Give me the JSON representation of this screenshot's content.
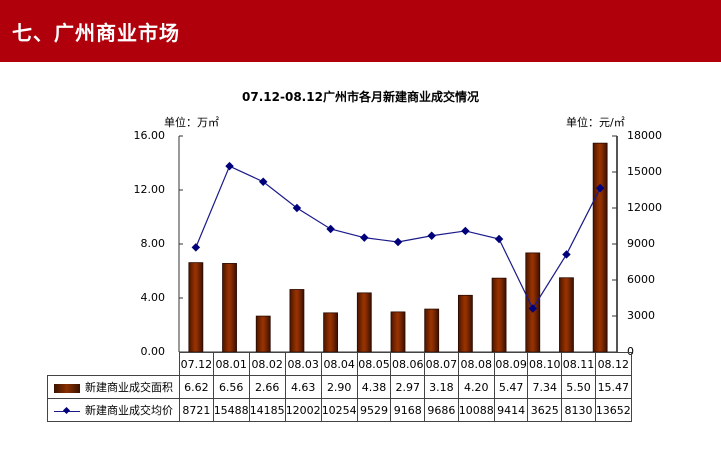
{
  "header": {
    "title": "七、广州商业市场",
    "bg_color": "#b0000c"
  },
  "chart": {
    "title": "07.12-08.12广州市各月新建商业成交情况",
    "unit_left": "单位：万㎡",
    "unit_right": "单位：元/㎡",
    "left_ticks": [
      "16.00",
      "12.00",
      "8.00",
      "4.00",
      "0.00"
    ],
    "right_ticks": [
      "18000",
      "15000",
      "12000",
      "9000",
      "6000",
      "3000",
      "0"
    ],
    "legend": {
      "area_label": "新建商业成交面积",
      "price_label": "新建商业成交均价"
    },
    "categories": [
      "07.12",
      "08.01",
      "08.02",
      "08.03",
      "08.04",
      "08.05",
      "08.06",
      "08.07",
      "08.08",
      "08.09",
      "08.10",
      "08.11",
      "08.12"
    ],
    "area_values": [
      "6.62",
      "6.56",
      "2.66",
      "4.63",
      "2.90",
      "4.38",
      "2.97",
      "3.18",
      "4.20",
      "5.47",
      "7.34",
      "5.50",
      "15.47"
    ],
    "price_values": [
      "8721",
      "15488",
      "14185",
      "12002",
      "10254",
      "9529",
      "9168",
      "9686",
      "10088",
      "9414",
      "3625",
      "8130",
      "13652"
    ]
  },
  "chart_data": {
    "type": "bar",
    "title": "07.12-08.12广州市各月新建商业成交情况",
    "categories": [
      "07.12",
      "08.01",
      "08.02",
      "08.03",
      "08.04",
      "08.05",
      "08.06",
      "08.07",
      "08.08",
      "08.09",
      "08.10",
      "08.11",
      "08.12"
    ],
    "series": [
      {
        "name": "新建商业成交面积",
        "type": "bar",
        "axis": "left",
        "unit": "万㎡",
        "color": "#8a3000",
        "values": [
          6.62,
          6.56,
          2.66,
          4.63,
          2.9,
          4.38,
          2.97,
          3.18,
          4.2,
          5.47,
          7.34,
          5.5,
          15.47
        ]
      },
      {
        "name": "新建商业成交均价",
        "type": "line",
        "axis": "right",
        "unit": "元/㎡",
        "color": "#1a1a8a",
        "values": [
          8721,
          15488,
          14185,
          12002,
          10254,
          9529,
          9168,
          9686,
          10088,
          9414,
          3625,
          8130,
          13652
        ]
      }
    ],
    "ylabel": "单位：万㎡",
    "y2label": "单位：元/㎡",
    "ylim": [
      0,
      16
    ],
    "y2lim": [
      0,
      18000
    ],
    "yticks": [
      0,
      4,
      8,
      12,
      16
    ],
    "y2ticks": [
      0,
      3000,
      6000,
      9000,
      12000,
      15000,
      18000
    ],
    "grid": false,
    "legend_position": "data-table",
    "data_table": true
  }
}
